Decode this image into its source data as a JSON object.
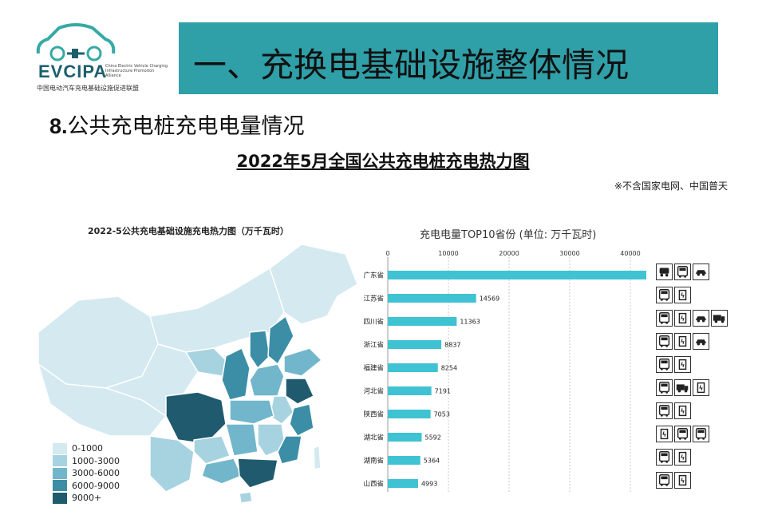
{
  "logo": {
    "abbr": "EVCIPA",
    "english": "China Electric Vehicle Charging Infrastructure Promotion Alliance",
    "chinese": "中国电动汽车充电基础设施促进联盟"
  },
  "banner": {
    "title": "一、充换电基础设施整体情况",
    "color": "#2f9fa8"
  },
  "section": {
    "number": "8.",
    "title": "公共充电桩充电电量情况"
  },
  "main_title": "2022年5月全国公共充电桩充电热力图",
  "note": "※不含国家电网、中国普天",
  "map": {
    "title": "2022-5公共充电基础设施充电热力图（万千瓦时）",
    "legend": [
      {
        "label": "0-1000",
        "color": "#d4e9f0"
      },
      {
        "label": "1000-3000",
        "color": "#a7d3e0"
      },
      {
        "label": "3000-6000",
        "color": "#72b6cb"
      },
      {
        "label": "6000-9000",
        "color": "#3b8ea6"
      },
      {
        "label": "9000+",
        "color": "#1f5a6e"
      }
    ]
  },
  "chart_data": [
    {
      "type": "bar",
      "orientation": "horizontal",
      "title": "充电电量TOP10省份 (单位: 万千瓦时)",
      "categories": [
        "广东省",
        "江苏省",
        "四川省",
        "浙江省",
        "福建省",
        "河北省",
        "陕西省",
        "湖北省",
        "湖南省",
        "山西省"
      ],
      "values": [
        43187,
        14569,
        11363,
        8837,
        8254,
        7191,
        7053,
        5592,
        5364,
        4993
      ],
      "data_labels": [
        "43187",
        "14569",
        "11363",
        "8837",
        "8254",
        "7191",
        "7053",
        "5592",
        "5364",
        "4993"
      ],
      "x_ticks": [
        0,
        10000,
        20000,
        30000,
        40000
      ],
      "x_tick_labels": [
        "0",
        "10000",
        "20000",
        "30000",
        "40000"
      ],
      "xlim": [
        0,
        40000
      ],
      "bar_color": "#3fc3d2",
      "grid": "vertical dashed"
    }
  ],
  "icon_rows": [
    [
      "car-icon",
      "bus-icon",
      "sedan-icon"
    ],
    [
      "bus-icon",
      "charger-icon"
    ],
    [
      "bus-icon",
      "charger-icon",
      "sedan-icon",
      "truck-icon"
    ],
    [
      "bus-icon",
      "charger-icon",
      "sedan-icon"
    ],
    [
      "bus-icon",
      "charger-icon"
    ],
    [
      "bus-icon",
      "truck-icon",
      "charger-icon"
    ],
    [
      "bus-icon",
      "charger-icon"
    ],
    [
      "charger-icon",
      "bus-icon",
      "bus-icon"
    ],
    [
      "bus-icon",
      "charger-icon"
    ],
    [
      "bus-icon",
      "charger-icon"
    ]
  ]
}
